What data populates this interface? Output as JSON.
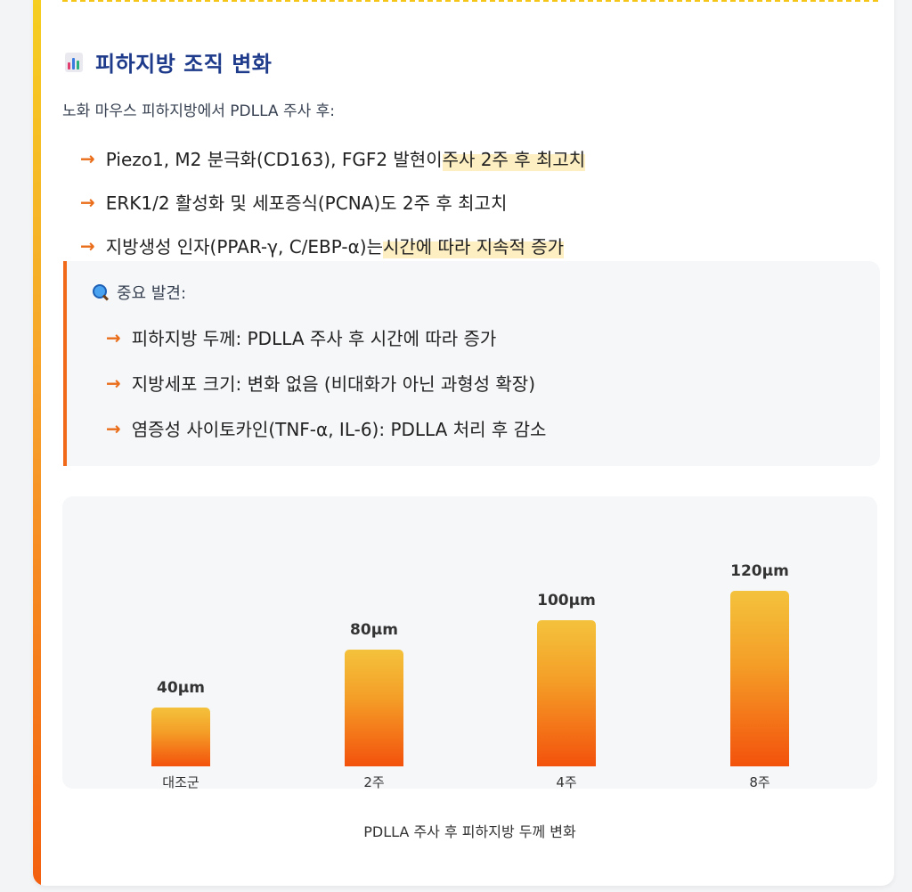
{
  "section": {
    "icon": "bar-chart-icon",
    "title": "피하지방 조직 변화",
    "intro": "노화 마우스 피하지방에서 PDLLA 주사 후:"
  },
  "bullets": [
    {
      "pre": "Piezo1, M2 분극화(CD163), FGF2 발현이 ",
      "hl": "주사 2주 후 최고치"
    },
    {
      "pre": "ERK1/2 활성화 및 세포증식(PCNA)도 2주 후 최고치",
      "hl": ""
    },
    {
      "pre": "지방생성 인자(PPAR-γ, C/EBP-α)는 ",
      "hl": "시간에 따라 지속적 증가"
    }
  ],
  "finding": {
    "icon": "magnifying-glass-icon",
    "heading": "중요 발견:",
    "items": [
      "피하지방 두께: PDLLA 주사 후 시간에 따라 증가",
      "지방세포 크기: 변화 없음 (비대화가 아닌 과형성 확장)",
      "염증성 사이토카인(TNF-α, IL-6): PDLLA 처리 후 감소"
    ]
  },
  "chart_data": {
    "type": "bar",
    "categories": [
      "대조군",
      "2주",
      "4주",
      "8주"
    ],
    "values": [
      40,
      80,
      100,
      120
    ],
    "value_labels": [
      "40μm",
      "80μm",
      "100μm",
      "120μm"
    ],
    "unit": "μm",
    "title": "",
    "caption": "PDLLA 주사 후 피하지방 두께 변화",
    "xlabel": "",
    "ylabel": "",
    "ylim": [
      0,
      120
    ],
    "grid": false,
    "colors": {
      "bar_top": "#f4c23c",
      "bar_bottom": "#f3520c"
    }
  },
  "colors": {
    "title": "#1e3a8a",
    "arrow": "#ea6d1a",
    "highlight": "#fdefc1",
    "accent_bar_top": "#f5d020",
    "accent_bar_bottom": "#f3600f"
  }
}
